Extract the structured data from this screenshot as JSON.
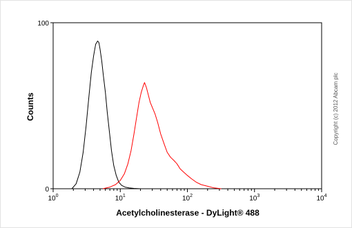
{
  "chart_data": {
    "type": "line",
    "title": "",
    "xlabel": "Acetylcholinesterase - DyLight® 488",
    "ylabel": "Counts",
    "x_scale": "log",
    "xlim": [
      1,
      10000
    ],
    "ylim": [
      0,
      100
    ],
    "grid": false,
    "legend": "none",
    "y_ticks": [
      "0",
      "100"
    ],
    "x_ticks": [
      {
        "base": "10",
        "exp": "0"
      },
      {
        "base": "10",
        "exp": "1"
      },
      {
        "base": "10",
        "exp": "2"
      },
      {
        "base": "10",
        "exp": "3"
      },
      {
        "base": "10",
        "exp": "4"
      }
    ],
    "series": [
      {
        "color": "#000000",
        "x": [
          1.9,
          2.2,
          2.5,
          2.8,
          3.1,
          3.4,
          3.7,
          4.0,
          4.3,
          4.6,
          4.8,
          5.0,
          5.3,
          5.6,
          6.0,
          6.4,
          6.9,
          7.4,
          8.0,
          8.7,
          9.5,
          10.5,
          11.8,
          13.5,
          16.0,
          20.0
        ],
        "y": [
          0,
          3,
          10,
          22,
          38,
          55,
          70,
          80,
          87,
          89,
          88,
          84,
          77,
          68,
          58,
          46,
          34,
          23,
          14,
          8,
          4,
          2,
          1,
          0.5,
          0.2,
          0
        ]
      },
      {
        "color": "#ff0000",
        "x": [
          5.5,
          7,
          8.5,
          10,
          11.5,
          13,
          14.5,
          16,
          17.5,
          19,
          20.5,
          22,
          23,
          24.5,
          26,
          28,
          30,
          33,
          36,
          40,
          45,
          50,
          56,
          63,
          70,
          78,
          88,
          100,
          115,
          135,
          160,
          200,
          250,
          320
        ],
        "y": [
          0,
          1,
          2.5,
          5,
          9,
          15,
          23,
          33,
          43,
          52,
          58,
          62,
          64,
          61,
          57,
          52,
          49,
          45,
          40,
          33,
          27,
          22,
          19,
          17,
          15,
          12,
          10,
          8,
          6,
          4,
          2.5,
          1.5,
          0.5,
          0
        ]
      }
    ]
  },
  "watermark": "Copyright (c) 2012 Abcam plc"
}
